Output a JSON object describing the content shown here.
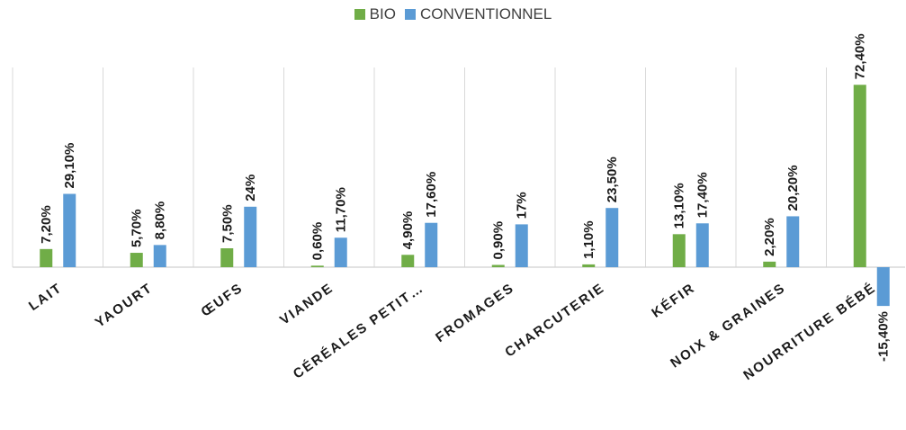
{
  "colors": {
    "bio": "#70ad47",
    "conventionnel": "#5b9bd5",
    "grid": "#d9d9d9",
    "axis": "#d0d0d0"
  },
  "chart_data": {
    "type": "bar",
    "title": "",
    "xlabel": "",
    "ylabel": "",
    "legend_position": "top-center",
    "grid": "vertical category separators",
    "ylim": [
      -25,
      80
    ],
    "categories": [
      "LAIT",
      "YAOURT",
      "ŒUFS",
      "VIANDE",
      "CÉRÉALES PETIT…",
      "FROMAGES",
      "CHARCUTERIE",
      "KÉFIR",
      "NOIX & GRAINES",
      "NOURRITURE BÉBÉ"
    ],
    "series": [
      {
        "name": "BIO",
        "values": [
          7.2,
          5.7,
          7.5,
          0.6,
          4.9,
          0.9,
          1.1,
          13.1,
          2.2,
          72.4
        ],
        "labels": [
          "7,20%",
          "5,70%",
          "7,50%",
          "0,60%",
          "4,90%",
          "0,90%",
          "1,10%",
          "13,10%",
          "2,20%",
          "72,40%"
        ]
      },
      {
        "name": "CONVENTIONNEL",
        "values": [
          29.1,
          8.8,
          24,
          11.7,
          17.6,
          17,
          23.5,
          17.4,
          20.2,
          -15.4
        ],
        "labels": [
          "29,10%",
          "8,80%",
          "24%",
          "11,70%",
          "17,60%",
          "17%",
          "23,50%",
          "17,40%",
          "20,20%",
          "-15,40%"
        ]
      }
    ]
  }
}
